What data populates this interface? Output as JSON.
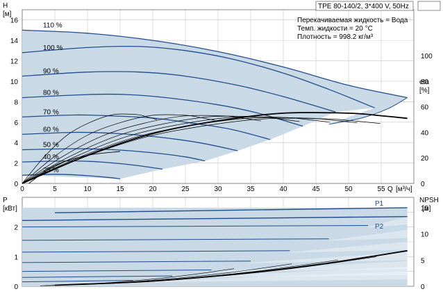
{
  "chart_data": [
    {
      "type": "line",
      "title": "TPE 80-140/2, 3*400 V, 50Hz",
      "ylabel": "H",
      "yunit": "[м]",
      "xlabel": "Q",
      "xunit": "[м³/ч]",
      "y2label": "eta",
      "y2unit": "[%]",
      "xlim": [
        0,
        60
      ],
      "ylim": [
        0,
        17
      ],
      "y2lim": [
        0,
        136
      ],
      "xticks": [
        0,
        5,
        10,
        15,
        20,
        25,
        30,
        35,
        40,
        45,
        50,
        55
      ],
      "yticks": [
        0,
        2,
        4,
        6,
        8,
        10,
        12,
        14,
        16
      ],
      "y2ticks": [
        0,
        20,
        40,
        60,
        80,
        100
      ],
      "annotations": [
        "Перекачиваемая жидкость = Вода",
        "Темп. жидкости = 20 °C",
        "Плотность = 998.2 кг/м³"
      ],
      "speed_labels": [
        "110 %",
        "100 %",
        "90 %",
        "80 %",
        "70 %",
        "60 %",
        "50 %",
        "40 %",
        "25 %"
      ],
      "series": [
        {
          "name": "110 %",
          "x": [
            0,
            10,
            20,
            30,
            40,
            50,
            59
          ],
          "y": [
            15.0,
            14.7,
            14.0,
            12.9,
            11.4,
            9.6,
            8.4
          ]
        },
        {
          "name": "100 %",
          "x": [
            0,
            10,
            18,
            25,
            32,
            40,
            47,
            54
          ],
          "y": [
            12.8,
            13.3,
            13.4,
            13.0,
            12.2,
            10.8,
            9.2,
            7.4
          ]
        },
        {
          "name": "90 %",
          "x": [
            0,
            10,
            18,
            25,
            33,
            40,
            48
          ],
          "y": [
            10.5,
            10.9,
            10.9,
            10.5,
            9.6,
            8.5,
            7.0
          ]
        },
        {
          "name": "80 %",
          "x": [
            0,
            10,
            16,
            22,
            30,
            36,
            43
          ],
          "y": [
            8.4,
            8.7,
            8.7,
            8.4,
            7.7,
            6.9,
            5.6
          ]
        },
        {
          "name": "70 %",
          "x": [
            0,
            8,
            14,
            20,
            26,
            32,
            38
          ],
          "y": [
            6.5,
            6.7,
            6.6,
            6.4,
            5.9,
            5.3,
            4.3
          ]
        },
        {
          "name": "60 %",
          "x": [
            0,
            8,
            14,
            20,
            27,
            33
          ],
          "y": [
            4.8,
            5.0,
            4.9,
            4.6,
            4.0,
            3.2
          ]
        },
        {
          "name": "50 %",
          "x": [
            0,
            8,
            14,
            20,
            25,
            28
          ],
          "y": [
            3.3,
            3.4,
            3.3,
            3.0,
            2.6,
            2.2
          ]
        },
        {
          "name": "40 %",
          "x": [
            0,
            7,
            12,
            17,
            21.5
          ],
          "y": [
            2.1,
            2.2,
            2.1,
            1.8,
            1.4
          ]
        },
        {
          "name": "25 %",
          "x": [
            0,
            5,
            9,
            13,
            15
          ],
          "y": [
            0.8,
            0.9,
            0.8,
            0.6,
            0.45
          ]
        }
      ],
      "eta": {
        "max": {
          "x": [
            0,
            10,
            20,
            30,
            40,
            50,
            55,
            59
          ],
          "y": [
            0,
            22,
            39,
            49,
            55,
            55,
            53,
            51
          ]
        },
        "min": {
          "x": [
            1,
            5,
            10,
            15
          ],
          "y": [
            0,
            14,
            22,
            25
          ]
        }
      },
      "envelope_max_q": {
        "x": [
          59,
          56,
          52,
          47
        ],
        "y": [
          8.4,
          7.3,
          6.4,
          5.8
        ]
      },
      "colors": {
        "curve": "#1f4e8c",
        "fill": "#c9d9e6",
        "eta": "#000000",
        "grid": "#c8c8c8"
      }
    },
    {
      "type": "line",
      "ylabel": "P",
      "yunit": "[кВт]",
      "y2label": "NPSH",
      "y2unit": "[м]",
      "xlim": [
        0,
        60
      ],
      "ylim": [
        0,
        3.0
      ],
      "y2lim": [
        0,
        17
      ],
      "yticks": [
        0,
        1,
        2
      ],
      "y2ticks": [
        0,
        5,
        10,
        15
      ],
      "labels": [
        "P1",
        "P2"
      ],
      "series": [
        {
          "name": "P1",
          "x": [
            5,
            59
          ],
          "y": [
            2.48,
            2.65
          ]
        },
        {
          "name": "P2",
          "x": [
            0,
            59
          ],
          "y": [
            2.22,
            2.35
          ]
        }
      ],
      "power_fill_top": {
        "x": [
          0,
          59
        ],
        "y": [
          2.65,
          2.65
        ]
      },
      "power_levels": [
        2.0,
        1.55,
        1.15,
        0.8,
        0.5,
        0.3,
        0.15
      ],
      "npsh": {
        "x": [
          5,
          20,
          35,
          45,
          52,
          59
        ],
        "y": [
          0.2,
          1.0,
          2.6,
          4.1,
          5.4,
          6.8
        ]
      }
    }
  ]
}
